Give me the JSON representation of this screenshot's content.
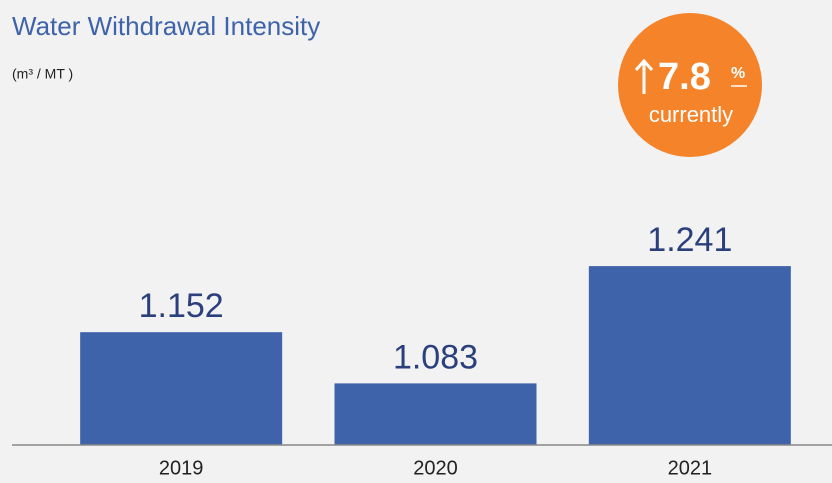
{
  "chart_data": {
    "type": "bar",
    "title": "Water Withdrawal Intensity",
    "subtitle": "(m³ / MT )",
    "categories": [
      "2019",
      "2020",
      "2021"
    ],
    "values": [
      1.152,
      1.083,
      1.241
    ],
    "color": "#3f63ab",
    "ylim": [
      1,
      1.26
    ],
    "badge": {
      "value": 7.8,
      "unit": "%",
      "caption": "currently",
      "color": "#f5832a"
    }
  }
}
